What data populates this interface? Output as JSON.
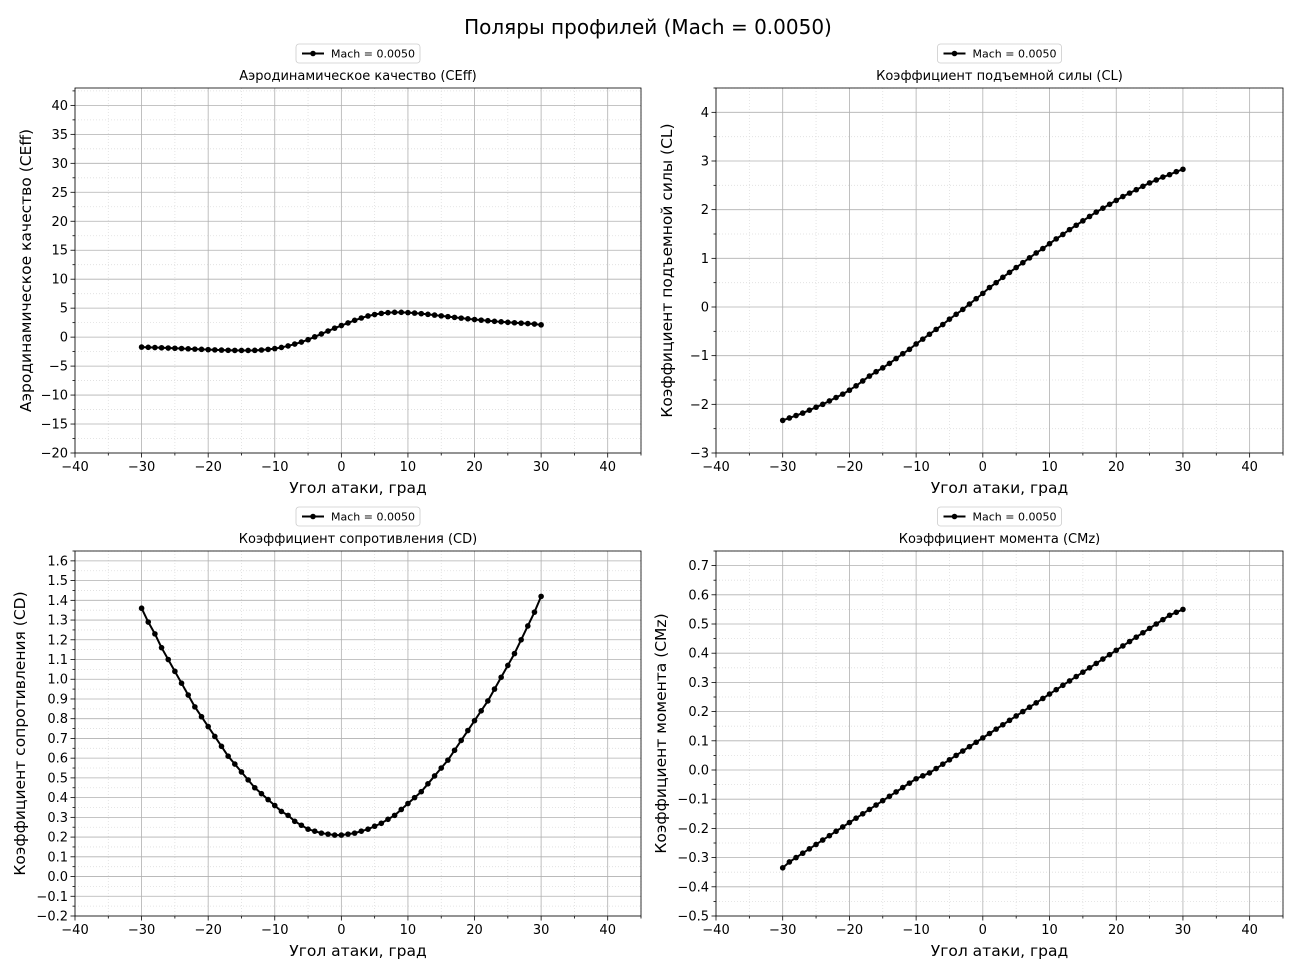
{
  "figure": {
    "title": "Поляры профилей (Mach = 0.0050)"
  },
  "colors": {
    "line": "#000000",
    "major_grid": "#b0b0b0",
    "minor_grid": "#dddddd",
    "axes": "#000000",
    "background": "#ffffff"
  },
  "chart_data": [
    {
      "type": "line",
      "title": "Аэродинамическое качество (CEff)",
      "xlabel": "Угол атаки, град",
      "ylabel": "Аэродинамическое качество (CEff)",
      "xlim": [
        -40,
        45
      ],
      "ylim": [
        -20,
        43
      ],
      "xticks": [
        -40,
        -30,
        -20,
        -10,
        0,
        10,
        20,
        30,
        40
      ],
      "yticks": [
        -20,
        -15,
        -10,
        -5,
        0,
        5,
        10,
        15,
        20,
        25,
        30,
        35,
        40
      ],
      "xminor": 5,
      "yminor": 2.5,
      "tick_decimals": 0,
      "grid": true,
      "legend": {
        "placement": "top-center",
        "entries": [
          "Mach = 0.0050"
        ]
      },
      "series": [
        {
          "name": "Mach = 0.0050",
          "x": [
            -30,
            -29,
            -28,
            -27,
            -26,
            -25,
            -24,
            -23,
            -22,
            -21,
            -20,
            -19,
            -18,
            -17,
            -16,
            -15,
            -14,
            -13,
            -12,
            -11,
            -10,
            -9,
            -8,
            -7,
            -6,
            -5,
            -4,
            -3,
            -2,
            -1,
            0,
            1,
            2,
            3,
            4,
            5,
            6,
            7,
            8,
            9,
            10,
            11,
            12,
            13,
            14,
            15,
            16,
            17,
            18,
            19,
            20,
            21,
            22,
            23,
            24,
            25,
            26,
            27,
            28,
            29,
            30
          ],
          "y": [
            -1.72,
            -1.76,
            -1.8,
            -1.84,
            -1.88,
            -1.92,
            -1.97,
            -2.02,
            -2.07,
            -2.11,
            -2.16,
            -2.2,
            -2.24,
            -2.27,
            -2.29,
            -2.3,
            -2.3,
            -2.28,
            -2.22,
            -2.12,
            -1.98,
            -1.78,
            -1.52,
            -1.2,
            -0.85,
            -0.45,
            0.05,
            0.55,
            1.05,
            1.55,
            2.0,
            2.45,
            2.9,
            3.3,
            3.65,
            3.9,
            4.1,
            4.22,
            4.28,
            4.28,
            4.23,
            4.15,
            4.05,
            3.93,
            3.8,
            3.67,
            3.54,
            3.41,
            3.28,
            3.16,
            3.04,
            2.93,
            2.83,
            2.73,
            2.64,
            2.56,
            2.48,
            2.41,
            2.34,
            2.26,
            2.12
          ]
        }
      ]
    },
    {
      "type": "line",
      "title": "Коэффициент подъемной силы (CL)",
      "xlabel": "Угол атаки, град",
      "ylabel": "Коэффициент подъемной силы (CL)",
      "xlim": [
        -40,
        45
      ],
      "ylim": [
        -3,
        4.5
      ],
      "xticks": [
        -40,
        -30,
        -20,
        -10,
        0,
        10,
        20,
        30,
        40
      ],
      "yticks": [
        -3,
        -2,
        -1,
        0,
        1,
        2,
        3,
        4
      ],
      "xminor": 5,
      "yminor": 0.5,
      "tick_decimals": 0,
      "grid": true,
      "legend": {
        "placement": "top-center",
        "entries": [
          "Mach = 0.0050"
        ]
      },
      "series": [
        {
          "name": "Mach = 0.0050",
          "x": [
            -30,
            -29,
            -28,
            -27,
            -26,
            -25,
            -24,
            -23,
            -22,
            -21,
            -20,
            -19,
            -18,
            -17,
            -16,
            -15,
            -14,
            -13,
            -12,
            -11,
            -10,
            -9,
            -8,
            -7,
            -6,
            -5,
            -4,
            -3,
            -2,
            -1,
            0,
            1,
            2,
            3,
            4,
            5,
            6,
            7,
            8,
            9,
            10,
            11,
            12,
            13,
            14,
            15,
            16,
            17,
            18,
            19,
            20,
            21,
            22,
            23,
            24,
            25,
            26,
            27,
            28,
            29,
            30
          ],
          "y": [
            -2.33,
            -2.28,
            -2.23,
            -2.18,
            -2.12,
            -2.06,
            -2.0,
            -1.93,
            -1.86,
            -1.79,
            -1.71,
            -1.62,
            -1.52,
            -1.42,
            -1.33,
            -1.25,
            -1.16,
            -1.06,
            -0.96,
            -0.87,
            -0.76,
            -0.66,
            -0.56,
            -0.46,
            -0.36,
            -0.25,
            -0.15,
            -0.05,
            0.06,
            0.17,
            0.28,
            0.4,
            0.5,
            0.61,
            0.71,
            0.81,
            0.91,
            1.01,
            1.11,
            1.2,
            1.3,
            1.4,
            1.49,
            1.59,
            1.68,
            1.77,
            1.86,
            1.95,
            2.03,
            2.11,
            2.19,
            2.27,
            2.34,
            2.41,
            2.48,
            2.55,
            2.61,
            2.67,
            2.72,
            2.78,
            2.83
          ]
        }
      ]
    },
    {
      "type": "line",
      "title": "Коэффициент сопротивления (CD)",
      "xlabel": "Угол атаки, град",
      "ylabel": "Коэффициент сопротивления (CD)",
      "xlim": [
        -40,
        45
      ],
      "ylim": [
        -0.2,
        1.65
      ],
      "xticks": [
        -40,
        -30,
        -20,
        -10,
        0,
        10,
        20,
        30,
        40
      ],
      "yticks": [
        -0.2,
        -0.1,
        0.0,
        0.1,
        0.2,
        0.3,
        0.4,
        0.5,
        0.6,
        0.7,
        0.8,
        0.9,
        1.0,
        1.1,
        1.2,
        1.3,
        1.4,
        1.5,
        1.6
      ],
      "xminor": 5,
      "yminor": 0.05,
      "tick_decimals": 1,
      "grid": true,
      "legend": {
        "placement": "top-center",
        "entries": [
          "Mach = 0.0050"
        ]
      },
      "series": [
        {
          "name": "Mach = 0.0050",
          "x": [
            -30,
            -29,
            -28,
            -27,
            -26,
            -25,
            -24,
            -23,
            -22,
            -21,
            -20,
            -19,
            -18,
            -17,
            -16,
            -15,
            -14,
            -13,
            -12,
            -11,
            -10,
            -9,
            -8,
            -7,
            -6,
            -5,
            -4,
            -3,
            -2,
            -1,
            0,
            1,
            2,
            3,
            4,
            5,
            6,
            7,
            8,
            9,
            10,
            11,
            12,
            13,
            14,
            15,
            16,
            17,
            18,
            19,
            20,
            21,
            22,
            23,
            24,
            25,
            26,
            27,
            28,
            29,
            30
          ],
          "y": [
            1.36,
            1.29,
            1.23,
            1.16,
            1.1,
            1.04,
            0.98,
            0.92,
            0.86,
            0.81,
            0.76,
            0.71,
            0.66,
            0.61,
            0.57,
            0.53,
            0.49,
            0.45,
            0.42,
            0.39,
            0.36,
            0.33,
            0.31,
            0.28,
            0.26,
            0.24,
            0.23,
            0.22,
            0.215,
            0.21,
            0.21,
            0.215,
            0.22,
            0.23,
            0.24,
            0.255,
            0.27,
            0.29,
            0.31,
            0.34,
            0.37,
            0.4,
            0.43,
            0.47,
            0.51,
            0.55,
            0.59,
            0.64,
            0.69,
            0.74,
            0.79,
            0.84,
            0.89,
            0.95,
            1.01,
            1.07,
            1.13,
            1.2,
            1.27,
            1.34,
            1.42
          ]
        }
      ]
    },
    {
      "type": "line",
      "title": "Коэффициент момента (CMz)",
      "xlabel": "Угол атаки, град",
      "ylabel": "Коэффициент момента (CMz)",
      "xlim": [
        -40,
        45
      ],
      "ylim": [
        -0.5,
        0.75
      ],
      "xticks": [
        -40,
        -30,
        -20,
        -10,
        0,
        10,
        20,
        30,
        40
      ],
      "yticks": [
        -0.5,
        -0.4,
        -0.3,
        -0.2,
        -0.1,
        0.0,
        0.1,
        0.2,
        0.3,
        0.4,
        0.5,
        0.6,
        0.7
      ],
      "xminor": 5,
      "yminor": 0.05,
      "tick_decimals": 1,
      "grid": true,
      "legend": {
        "placement": "top-center",
        "entries": [
          "Mach = 0.0050"
        ]
      },
      "series": [
        {
          "name": "Mach = 0.0050",
          "x": [
            -30,
            -29,
            -28,
            -27,
            -26,
            -25,
            -24,
            -23,
            -22,
            -21,
            -20,
            -19,
            -18,
            -17,
            -16,
            -15,
            -14,
            -13,
            -12,
            -11,
            -10,
            -9,
            -8,
            -7,
            -6,
            -5,
            -4,
            -3,
            -2,
            -1,
            0,
            1,
            2,
            3,
            4,
            5,
            6,
            7,
            8,
            9,
            10,
            11,
            12,
            13,
            14,
            15,
            16,
            17,
            18,
            19,
            20,
            21,
            22,
            23,
            24,
            25,
            26,
            27,
            28,
            29,
            30
          ],
          "y": [
            -0.335,
            -0.315,
            -0.3,
            -0.285,
            -0.27,
            -0.255,
            -0.24,
            -0.225,
            -0.21,
            -0.195,
            -0.18,
            -0.165,
            -0.15,
            -0.135,
            -0.12,
            -0.105,
            -0.09,
            -0.075,
            -0.06,
            -0.045,
            -0.03,
            -0.02,
            -0.01,
            0.005,
            0.02,
            0.035,
            0.05,
            0.065,
            0.08,
            0.095,
            0.11,
            0.125,
            0.14,
            0.155,
            0.17,
            0.185,
            0.2,
            0.215,
            0.23,
            0.245,
            0.26,
            0.275,
            0.29,
            0.305,
            0.32,
            0.335,
            0.35,
            0.365,
            0.38,
            0.395,
            0.41,
            0.425,
            0.44,
            0.455,
            0.47,
            0.485,
            0.5,
            0.515,
            0.53,
            0.54,
            0.55
          ]
        }
      ]
    }
  ]
}
